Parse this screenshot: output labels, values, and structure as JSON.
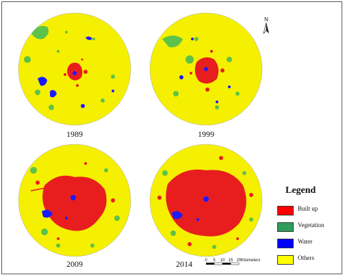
{
  "maps": [
    {
      "year": "1989"
    },
    {
      "year": "1999"
    },
    {
      "year": "2009"
    },
    {
      "year": "2014"
    }
  ],
  "legend": {
    "title": "Legend",
    "items": [
      {
        "label": "Built up",
        "color": "#ff0000"
      },
      {
        "label": "Vegetation",
        "color": "#2e9e5a"
      },
      {
        "label": "Water",
        "color": "#0000ff"
      },
      {
        "label": "Others",
        "color": "#ffff00"
      }
    ]
  },
  "north_label": "N",
  "scale": {
    "ticks": [
      "0",
      "5",
      "10",
      "15",
      "20"
    ],
    "unit": "Kilometers"
  },
  "colors": {
    "others": "#f5f000",
    "vegetation": "#5cc24a",
    "built_up": "#e81e1e",
    "water": "#1a1aff"
  }
}
